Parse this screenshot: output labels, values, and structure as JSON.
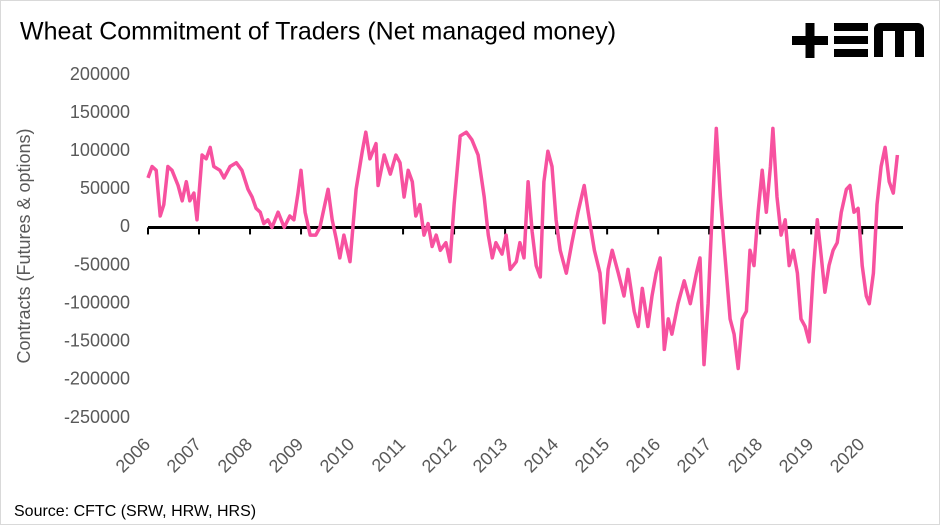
{
  "chart_data": {
    "type": "line",
    "title": "Wheat Commitment of Traders (Net managed money)",
    "y_label": "Contracts (Futures & options)",
    "source": "Source: CFTC (SRW, HRW, HRS)",
    "xlim": [
      2006,
      2020.8
    ],
    "xticks": [
      2006,
      2007,
      2008,
      2009,
      2010,
      2011,
      2012,
      2013,
      2014,
      2015,
      2016,
      2017,
      2018,
      2019,
      2020
    ],
    "ylim": [
      -250000,
      200000
    ],
    "yticks": [
      -250000,
      -200000,
      -150000,
      -100000,
      -50000,
      0,
      50000,
      100000,
      150000,
      200000
    ],
    "grid": false,
    "x": [
      2006.0,
      2006.08,
      2006.16,
      2006.24,
      2006.31,
      2006.39,
      2006.47,
      2006.59,
      2006.67,
      2006.75,
      2006.82,
      2006.9,
      2006.96,
      2007.06,
      2007.14,
      2007.22,
      2007.29,
      2007.41,
      2007.49,
      2007.61,
      2007.73,
      2007.84,
      2007.96,
      2008.04,
      2008.12,
      2008.2,
      2008.27,
      2008.35,
      2008.43,
      2008.55,
      2008.67,
      2008.78,
      2008.86,
      2008.94,
      2009.0,
      2009.08,
      2009.18,
      2009.29,
      2009.37,
      2009.45,
      2009.53,
      2009.61,
      2009.69,
      2009.76,
      2009.84,
      2009.96,
      2010.08,
      2010.2,
      2010.27,
      2010.35,
      2010.47,
      2010.51,
      2010.63,
      2010.75,
      2010.86,
      2010.94,
      2011.02,
      2011.1,
      2011.18,
      2011.25,
      2011.33,
      2011.41,
      2011.49,
      2011.57,
      2011.65,
      2011.73,
      2011.84,
      2011.92,
      2012.0,
      2012.12,
      2012.24,
      2012.35,
      2012.47,
      2012.59,
      2012.67,
      2012.75,
      2012.82,
      2012.94,
      2013.02,
      2013.1,
      2013.22,
      2013.29,
      2013.37,
      2013.45,
      2013.53,
      2013.61,
      2013.69,
      2013.76,
      2013.84,
      2013.92,
      2014.0,
      2014.08,
      2014.2,
      2014.31,
      2014.43,
      2014.55,
      2014.63,
      2014.75,
      2014.86,
      2014.94,
      2015.02,
      2015.1,
      2015.22,
      2015.33,
      2015.41,
      2015.53,
      2015.61,
      2015.69,
      2015.8,
      2015.88,
      2015.96,
      2016.04,
      2016.12,
      2016.2,
      2016.27,
      2016.39,
      2016.51,
      2016.63,
      2016.75,
      2016.82,
      2016.9,
      2016.98,
      2017.06,
      2017.14,
      2017.22,
      2017.29,
      2017.41,
      2017.49,
      2017.57,
      2017.65,
      2017.73,
      2017.8,
      2017.88,
      2017.96,
      2018.04,
      2018.12,
      2018.2,
      2018.25,
      2018.33,
      2018.41,
      2018.49,
      2018.57,
      2018.65,
      2018.73,
      2018.8,
      2018.88,
      2018.96,
      2019.04,
      2019.12,
      2019.2,
      2019.27,
      2019.35,
      2019.43,
      2019.51,
      2019.59,
      2019.69,
      2019.76,
      2019.84,
      2019.92,
      2020.0,
      2020.08,
      2020.14,
      2020.22,
      2020.29,
      2020.37,
      2020.45,
      2020.53,
      2020.61,
      2020.69
    ],
    "series": [
      {
        "name": "Net managed money",
        "color": "#f7519f",
        "values": [
          65000,
          80000,
          75000,
          15000,
          30000,
          80000,
          75000,
          55000,
          35000,
          60000,
          35000,
          45000,
          10000,
          95000,
          90000,
          105000,
          80000,
          75000,
          65000,
          80000,
          85000,
          75000,
          50000,
          40000,
          25000,
          20000,
          5000,
          10000,
          0,
          20000,
          0,
          15000,
          10000,
          45000,
          75000,
          20000,
          -10000,
          -10000,
          0,
          25000,
          50000,
          10000,
          -15000,
          -40000,
          -10000,
          -45000,
          50000,
          100000,
          125000,
          90000,
          110000,
          55000,
          95000,
          70000,
          95000,
          85000,
          40000,
          75000,
          60000,
          15000,
          30000,
          -10000,
          5000,
          -25000,
          -10000,
          -30000,
          -20000,
          -45000,
          30000,
          120000,
          125000,
          115000,
          95000,
          40000,
          -10000,
          -40000,
          -20000,
          -35000,
          -10000,
          -55000,
          -45000,
          -20000,
          -40000,
          60000,
          -5000,
          -50000,
          -65000,
          60000,
          100000,
          80000,
          10000,
          -30000,
          -60000,
          -20000,
          20000,
          55000,
          20000,
          -30000,
          -60000,
          -125000,
          -55000,
          -30000,
          -60000,
          -90000,
          -55000,
          -110000,
          -130000,
          -80000,
          -130000,
          -90000,
          -60000,
          -40000,
          -160000,
          -120000,
          -140000,
          -100000,
          -70000,
          -100000,
          -60000,
          -40000,
          -180000,
          -100000,
          20000,
          130000,
          40000,
          -20000,
          -120000,
          -140000,
          -185000,
          -120000,
          -110000,
          -30000,
          -50000,
          20000,
          75000,
          20000,
          80000,
          130000,
          40000,
          -10000,
          10000,
          -50000,
          -30000,
          -60000,
          -120000,
          -130000,
          -150000,
          -60000,
          10000,
          -40000,
          -85000,
          -50000,
          -30000,
          -20000,
          20000,
          50000,
          55000,
          20000,
          25000,
          -50000,
          -90000,
          -100000,
          -60000,
          30000,
          80000,
          105000,
          60000,
          45000,
          95000
        ]
      }
    ]
  }
}
